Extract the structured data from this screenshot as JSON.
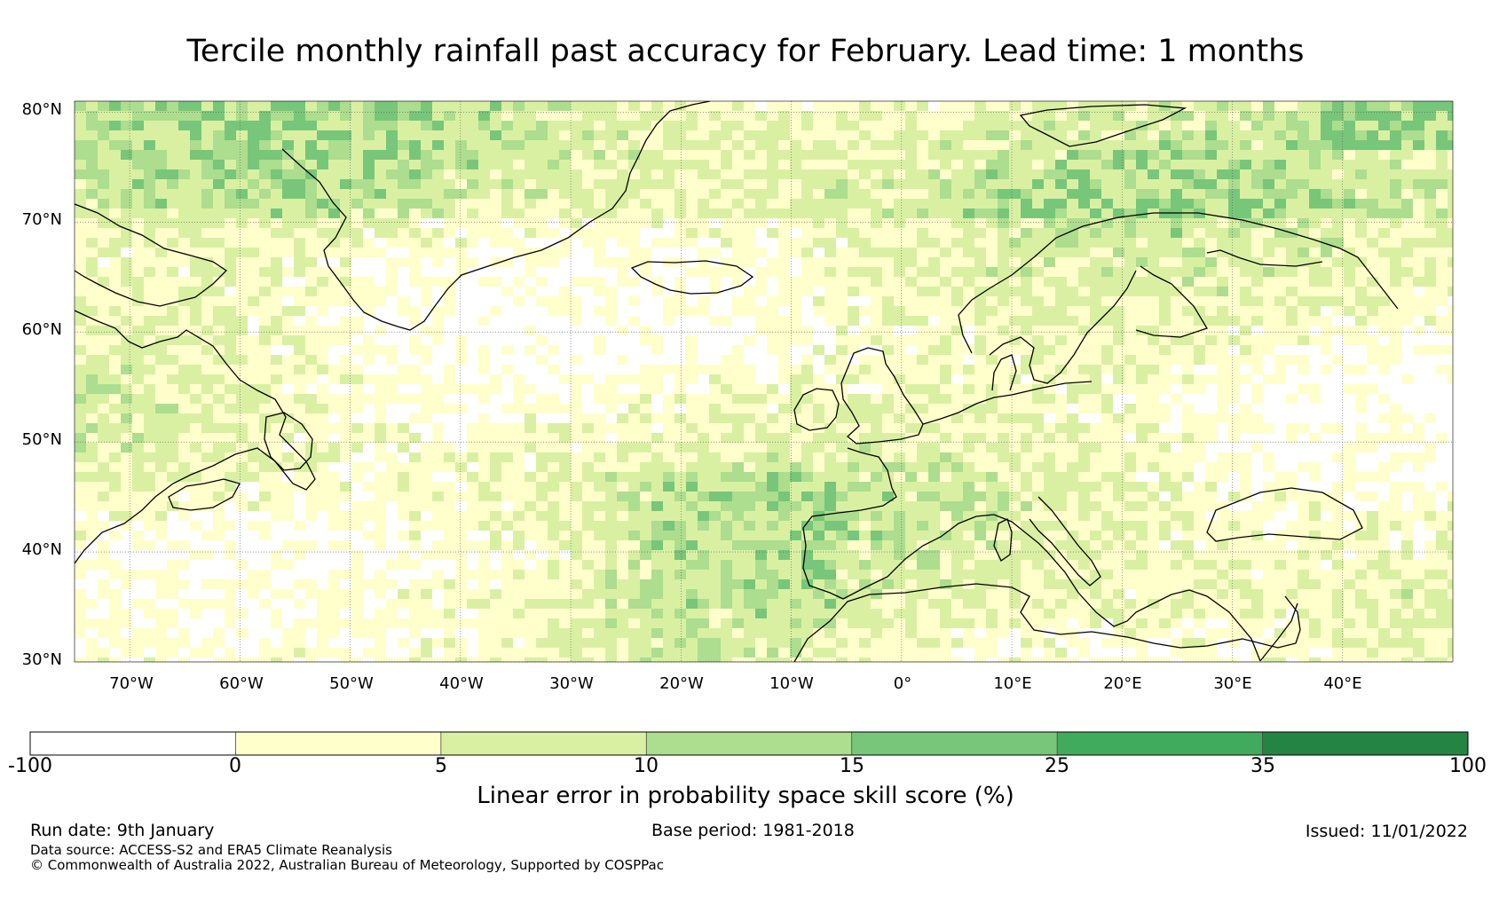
{
  "title": "Tercile monthly rainfall past accuracy for February. Lead time: 1 months",
  "map": {
    "region": "North Atlantic and Europe",
    "lon_range": [
      -75,
      50
    ],
    "lat_range": [
      30,
      81
    ],
    "lat_ticks": [
      "80°N",
      "70°N",
      "60°N",
      "50°N",
      "40°N",
      "30°N"
    ],
    "lon_ticks": [
      "70°W",
      "60°W",
      "50°W",
      "40°W",
      "30°W",
      "20°W",
      "10°W",
      "0°",
      "10°E",
      "20°E",
      "30°E",
      "40°E"
    ]
  },
  "colorbar": {
    "label": "Linear error in probability space skill score (%)",
    "ticks": [
      "-100",
      "0",
      "5",
      "10",
      "15",
      "25",
      "35",
      "100"
    ],
    "colors": [
      "#ffffff",
      "#ffffcc",
      "#d9f0a3",
      "#addd8e",
      "#78c679",
      "#41ab5d",
      "#238443"
    ]
  },
  "footer": {
    "run_date": "Run date: 9th January",
    "base_period": "Base period: 1981-2018",
    "issued": "Issued: 11/01/2022",
    "data_source": "Data source: ACCESS-S2 and ERA5 Climate Reanalysis",
    "copyright": "© Commonwealth of Australia 2022, Australian Bureau of Meteorology, Supported by COSPPac"
  }
}
